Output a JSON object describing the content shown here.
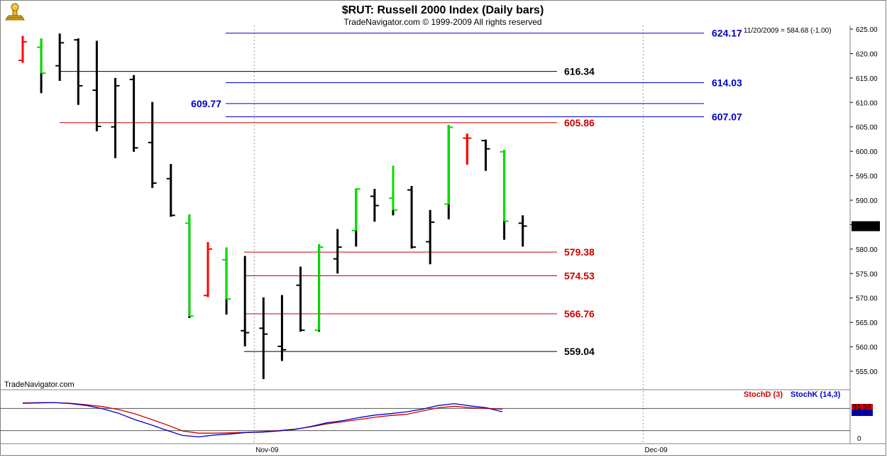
{
  "header": {
    "title": "$RUT:  Russell 2000 Index  (Daily bars)",
    "subtitle": "TradeNavigator.com © 1999-2009 All rights reserved",
    "quote": "11/20/2009 = 584.68 (-1.00)",
    "watermark": "TradeNavigator.com"
  },
  "chart_data": [
    {
      "type": "ohlc",
      "title": "$RUT:  Russell 2000 Index  (Daily bars)",
      "ylim": [
        551,
        626
      ],
      "y_ticks": [
        555,
        560,
        565,
        570,
        575,
        580,
        585,
        590,
        595,
        600,
        605,
        610,
        615,
        620,
        625
      ],
      "y_tick_labels": [
        "555.00",
        "560.00",
        "565.00",
        "570.00",
        "575.00",
        "580.00",
        "585.00",
        "590.00",
        "595.00",
        "600.00",
        "605.00",
        "610.00",
        "615.00",
        "620.00",
        "625.00"
      ],
      "x_labels": [
        {
          "label": "Nov-09",
          "bar_index": 12.5
        },
        {
          "label": "Dec-09",
          "bar_index": 33.5
        }
      ],
      "grid": "vertical dotted at month starts",
      "colors": {
        "up": "#00dd00",
        "down": "#ff0000",
        "neutral": "#000000"
      },
      "last_price_label": "584.68",
      "bars": [
        {
          "o": 618.6,
          "h": 623.6,
          "l": 618.1,
          "c": 622.4,
          "color": "red"
        },
        {
          "o": 621.3,
          "h": 623.1,
          "l": 611.9,
          "c": 616.0,
          "color": "green"
        },
        {
          "o": 617.5,
          "h": 624.1,
          "l": 614.4,
          "c": 622.2,
          "color": "black"
        },
        {
          "o": 622.8,
          "h": 623.1,
          "l": 609.5,
          "c": 613.4,
          "color": "black"
        },
        {
          "o": 612.5,
          "h": 622.6,
          "l": 604.1,
          "c": 605.1,
          "color": "black"
        },
        {
          "o": 605.0,
          "h": 615.0,
          "l": 598.6,
          "c": 613.4,
          "color": "black"
        },
        {
          "o": 614.7,
          "h": 615.6,
          "l": 599.9,
          "c": 600.7,
          "color": "black"
        },
        {
          "o": 601.8,
          "h": 610.1,
          "l": 592.5,
          "c": 593.5,
          "color": "black"
        },
        {
          "o": 594.4,
          "h": 597.4,
          "l": 586.6,
          "c": 586.9,
          "color": "black"
        },
        {
          "o": 585.3,
          "h": 587.1,
          "l": 565.9,
          "c": 566.3,
          "color": "green"
        },
        {
          "o": 570.5,
          "h": 581.4,
          "l": 570.2,
          "c": 580.0,
          "color": "red"
        },
        {
          "o": 577.8,
          "h": 580.3,
          "l": 566.6,
          "c": 569.8,
          "color": "green"
        },
        {
          "o": 563.3,
          "h": 578.6,
          "l": 560.1,
          "c": 562.9,
          "color": "black"
        },
        {
          "o": 563.8,
          "h": 570.1,
          "l": 553.4,
          "c": 562.6,
          "color": "black"
        },
        {
          "o": 560.1,
          "h": 570.6,
          "l": 557.1,
          "c": 559.4,
          "color": "black"
        },
        {
          "o": 572.6,
          "h": 576.4,
          "l": 563.1,
          "c": 563.4,
          "color": "black"
        },
        {
          "o": 563.4,
          "h": 581.0,
          "l": 563.1,
          "c": 580.4,
          "color": "green"
        },
        {
          "o": 578.0,
          "h": 584.1,
          "l": 575.0,
          "c": 580.4,
          "color": "black"
        },
        {
          "o": 583.8,
          "h": 592.4,
          "l": 580.5,
          "c": 592.3,
          "color": "green"
        },
        {
          "o": 590.8,
          "h": 592.3,
          "l": 585.6,
          "c": 588.9,
          "color": "black"
        },
        {
          "o": 590.4,
          "h": 597.0,
          "l": 586.9,
          "c": 588.0,
          "color": "green"
        },
        {
          "o": 592.1,
          "h": 592.9,
          "l": 580.1,
          "c": 580.4,
          "color": "black"
        },
        {
          "o": 581.5,
          "h": 588.0,
          "l": 576.9,
          "c": 585.5,
          "color": "black"
        },
        {
          "o": 589.2,
          "h": 605.4,
          "l": 586.1,
          "c": 604.9,
          "color": "green"
        },
        {
          "o": 602.7,
          "h": 603.6,
          "l": 597.3,
          "c": 602.7,
          "color": "red"
        },
        {
          "o": 602.2,
          "h": 602.4,
          "l": 596.0,
          "c": 600.5,
          "color": "black"
        },
        {
          "o": 599.9,
          "h": 600.3,
          "l": 581.9,
          "c": 585.7,
          "color": "green"
        },
        {
          "o": 585.3,
          "h": 586.9,
          "l": 580.5,
          "c": 584.7,
          "color": "black"
        }
      ],
      "levels": [
        {
          "value": 624.17,
          "label": "624.17",
          "color": "#0000cc",
          "label_side": "right"
        },
        {
          "value": 616.34,
          "label": "616.34",
          "color": "#000000",
          "label_side": "mid"
        },
        {
          "value": 614.03,
          "label": "614.03",
          "color": "#0000cc",
          "label_side": "right"
        },
        {
          "value": 609.77,
          "label": "609.77",
          "color": "#0000cc",
          "label_side": "left"
        },
        {
          "value": 607.07,
          "label": "607.07",
          "color": "#0000cc",
          "label_side": "right"
        },
        {
          "value": 605.86,
          "label": "605.86",
          "color": "#cc0000",
          "label_side": "mid"
        },
        {
          "value": 579.38,
          "label": "579.38",
          "color": "#cc0000",
          "label_side": "mid"
        },
        {
          "value": 574.53,
          "label": "574.53",
          "color": "#cc0000",
          "label_side": "mid"
        },
        {
          "value": 566.76,
          "label": "566.76",
          "color": "#cc0000",
          "label_side": "mid"
        },
        {
          "value": 559.04,
          "label": "559.04",
          "color": "#000000",
          "label_side": "mid"
        }
      ]
    },
    {
      "type": "line",
      "title": "Stochastics",
      "ylim": [
        0,
        100
      ],
      "y_tick_labels": [
        "0"
      ],
      "overbought": 80,
      "oversold": 20,
      "series": [
        {
          "name": "StochD (3)",
          "color": "#cc0000",
          "values": [
            95,
            96,
            96,
            94,
            90,
            85,
            77,
            66,
            51,
            36,
            19,
            13,
            13,
            14,
            15,
            17,
            20,
            24,
            30,
            38,
            44,
            50,
            56,
            61,
            64,
            73,
            82,
            86,
            82,
            80,
            78
          ]
        },
        {
          "name": "StochK (14,3)",
          "color": "#0000cc",
          "values": [
            94,
            95,
            96,
            93,
            88,
            79,
            67,
            50,
            36,
            21,
            7,
            3,
            8,
            11,
            15,
            16,
            19,
            23,
            31,
            41,
            47,
            55,
            62,
            66,
            71,
            78,
            88,
            93,
            87,
            82,
            71
          ]
        }
      ],
      "last_values": [
        "81.54",
        "83.83"
      ]
    }
  ]
}
